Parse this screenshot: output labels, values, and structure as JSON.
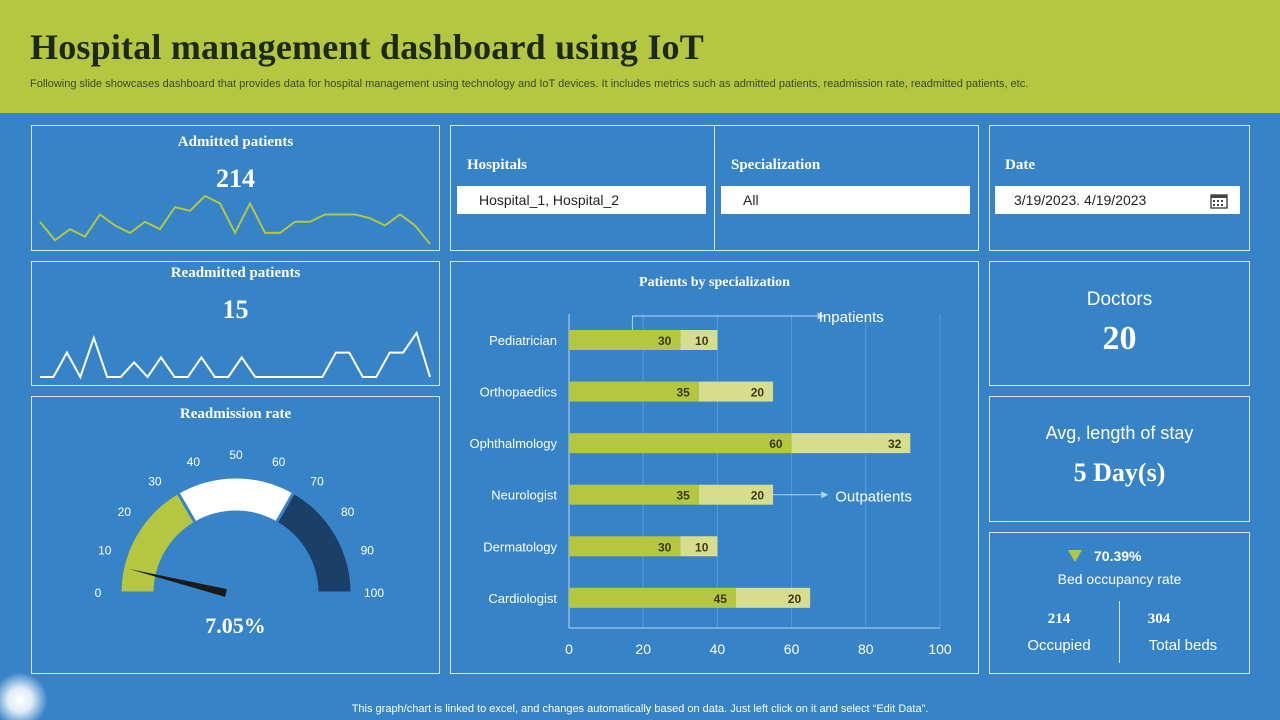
{
  "header": {
    "title": "Hospital management dashboard using IoT",
    "subtitle": "Following slide showcases dashboard that provides data for hospital management using technology and IoT devices. It includes metrics such as admitted patients, readmission rate, readmitted patients, etc."
  },
  "admitted": {
    "title": "Admitted  patients",
    "value": "214",
    "sparkline": [
      7,
      2,
      5,
      3,
      9,
      6,
      4,
      7,
      5,
      11,
      10,
      14,
      12,
      4,
      12,
      4,
      4,
      7,
      7,
      9,
      9,
      9,
      8,
      6,
      9,
      6,
      1
    ],
    "color": "#b5c641"
  },
  "readmitted": {
    "title": "Readmitted patients",
    "value": "15",
    "sparkline": [
      0,
      0,
      5,
      0,
      8,
      0,
      0,
      3,
      0,
      4,
      0,
      0,
      4,
      0,
      0,
      4,
      0,
      0,
      0,
      0,
      0,
      0,
      5,
      5,
      0,
      0,
      5,
      5,
      9,
      0
    ],
    "color": "#ffffff"
  },
  "filters": {
    "hospitals_label": "Hospitals",
    "hospitals_value": "Hospital_1, Hospital_2",
    "specialization_label": "Specialization",
    "specialization_value": "All",
    "date_label": "Date",
    "date_value": "3/19/2023. 4/19/2023"
  },
  "readmission": {
    "title": "Readmission rate",
    "value": "7.05%",
    "ticks": [
      "0",
      "10",
      "20",
      "30",
      "40",
      "50",
      "60",
      "70",
      "80",
      "90",
      "100"
    ],
    "needle_percent": 7.05,
    "colors": [
      "#b5c641",
      "#ffffff",
      "#1b3f66"
    ]
  },
  "chart_data": {
    "type": "bar",
    "title": "Patients by specialization",
    "categories": [
      "Pediatrician",
      "Orthopaedics",
      "Ophthalmology",
      "Neurologist",
      "Dermatology",
      "Cardiologist"
    ],
    "series": [
      {
        "name": "Inpatients",
        "values": [
          30,
          35,
          60,
          35,
          30,
          45
        ],
        "color": "#b5c641"
      },
      {
        "name": "Outpatients",
        "values": [
          10,
          20,
          32,
          20,
          10,
          20
        ],
        "color": "#d6de8e"
      }
    ],
    "xticks": [
      "0",
      "20",
      "40",
      "60",
      "80",
      "100"
    ],
    "xlim": [
      0,
      100
    ],
    "annotations": [
      "Inpatients",
      "Outpatients"
    ]
  },
  "doctors": {
    "label": "Doctors",
    "value": "20"
  },
  "stay": {
    "label": "Avg, length of stay",
    "value": "5 Day(s)"
  },
  "beds": {
    "rate": "70.39%",
    "rate_label": "Bed occupancy rate",
    "occupied_value": "214",
    "occupied_label": "Occupied",
    "total_value": "304",
    "total_label": "Total beds"
  },
  "footer": {
    "note": "This graph/chart is linked to excel, and changes automatically based on data. Just left click on it and select “Edit Data”."
  }
}
